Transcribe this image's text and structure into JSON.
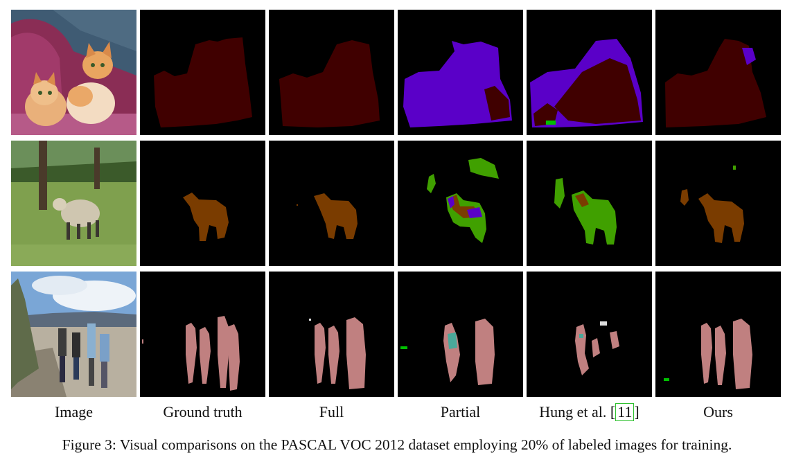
{
  "figure": {
    "columns": [
      "Image",
      "Ground truth",
      "Full",
      "Partial"
    ],
    "hung_label": "Hung et al. [",
    "hung_ref": "11",
    "hung_label_end": "]",
    "ours_label": "Ours",
    "caption": "Figure 3: Visual comparisons on the PASCAL VOC 2012 dataset employing 20% of labeled images for training.",
    "rows": [
      {
        "subject": "cats"
      },
      {
        "subject": "sheep"
      },
      {
        "subject": "people"
      }
    ],
    "colors": {
      "background": "#000000",
      "cat": "#400000",
      "dog": "#5a00c8",
      "sheep": "#7a3c00",
      "cow": "#40a000",
      "person": "#c08080",
      "person_alt": "#4aa89a",
      "noise_green": "#00c000"
    }
  }
}
